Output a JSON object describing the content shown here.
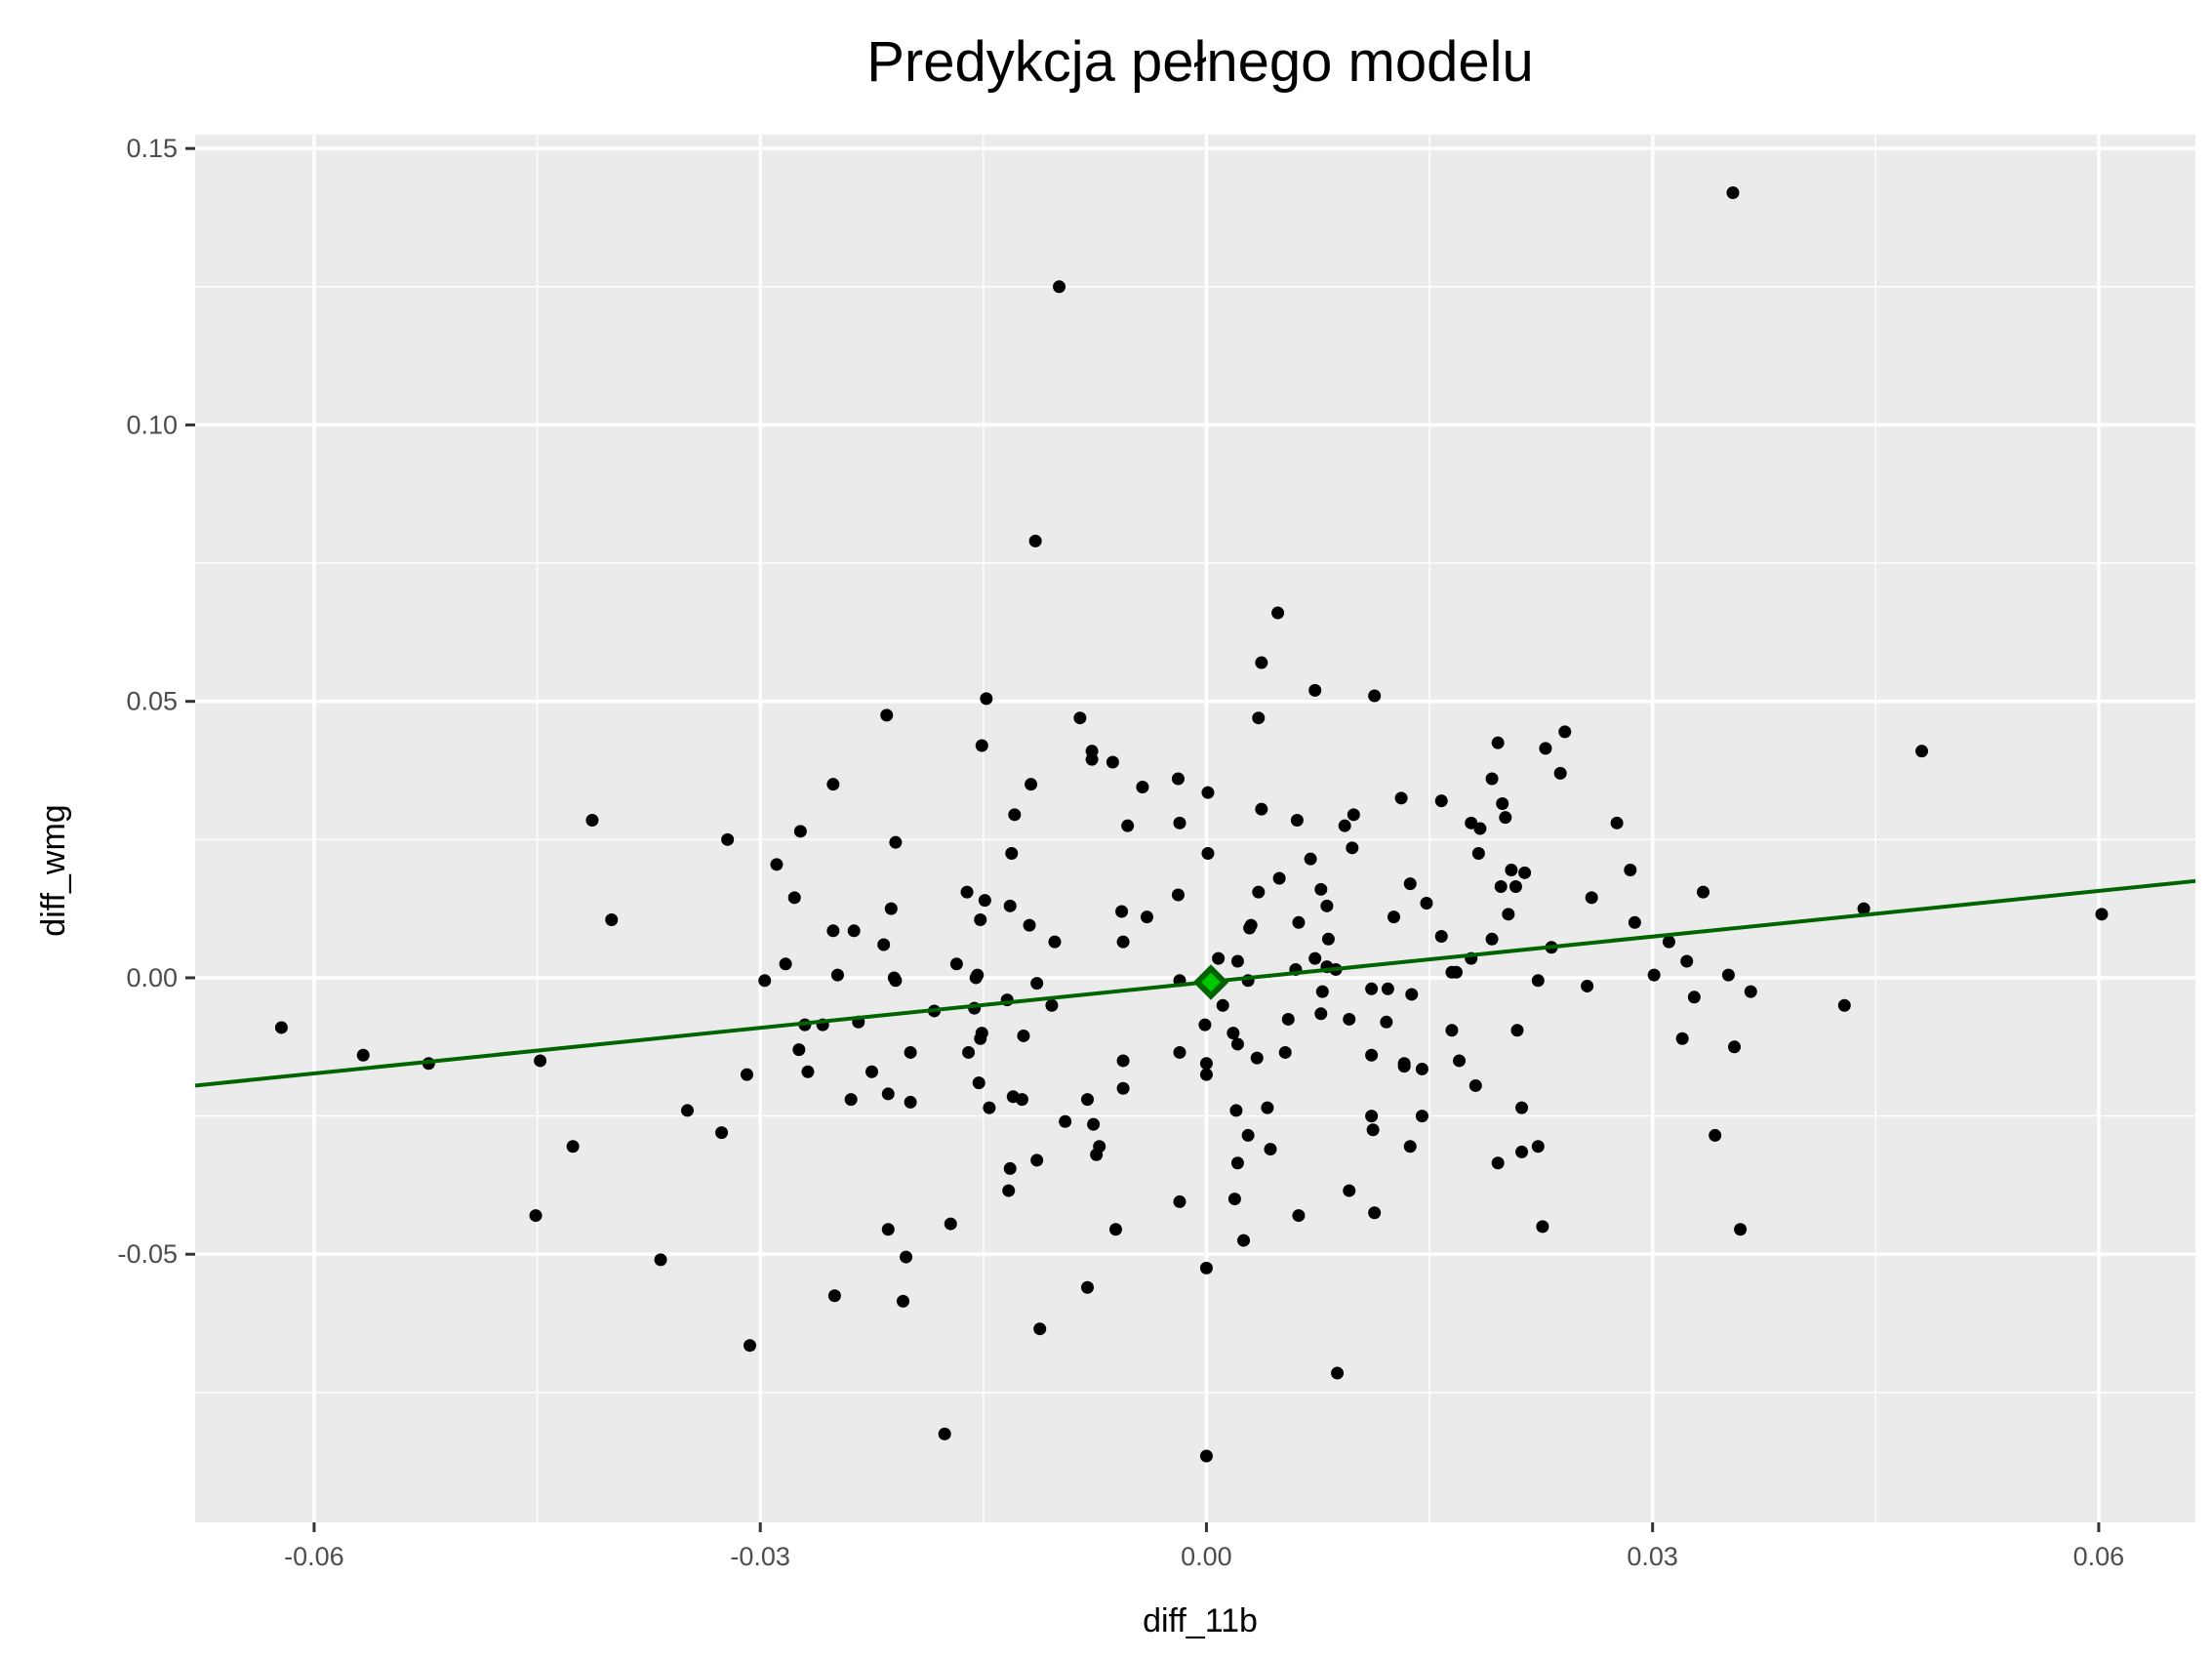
{
  "chart_data": {
    "type": "scatter",
    "title": "Predykcja pełnego modelu",
    "xlabel": "diff_11b",
    "ylabel": "diff_wmg",
    "xlim": [
      -0.068,
      0.0665
    ],
    "ylim": [
      -0.0985,
      0.1525
    ],
    "x_ticks": [
      -0.06,
      -0.03,
      0.0,
      0.03,
      0.06
    ],
    "x_tick_labels": [
      "-0.06",
      "-0.03",
      "0.00",
      "0.03",
      "0.06"
    ],
    "y_ticks": [
      -0.05,
      0.0,
      0.05,
      0.1,
      0.15
    ],
    "y_tick_labels": [
      "-0.05",
      "0.00",
      "0.05",
      "0.10",
      "0.15"
    ],
    "grid": true,
    "colors": {
      "panel": "#ebebeb",
      "grid": "#ffffff",
      "points": "#000000",
      "fit_line": "#006400",
      "marker_fill": "#00c800",
      "marker_stroke": "#006400"
    },
    "fit_line": {
      "x": [
        -0.068,
        0.0665
      ],
      "y": [
        -0.0195,
        0.0175
      ]
    },
    "highlight_point": {
      "x": 0.0003,
      "y": -0.0008,
      "shape": "diamond"
    },
    "points": [
      [
        0.0354,
        0.142
      ],
      [
        -0.0099,
        0.125
      ],
      [
        -0.0115,
        0.079
      ],
      [
        0.0048,
        0.066
      ],
      [
        0.0037,
        0.057
      ],
      [
        0.0073,
        0.052
      ],
      [
        0.0113,
        0.051
      ],
      [
        -0.0148,
        0.0505
      ],
      [
        -0.0215,
        0.0475
      ],
      [
        -0.0085,
        0.047
      ],
      [
        0.0035,
        0.047
      ],
      [
        0.0481,
        0.041
      ],
      [
        0.0241,
        0.0445
      ],
      [
        0.0196,
        0.0425
      ],
      [
        -0.0151,
        0.042
      ],
      [
        0.0228,
        0.0415
      ],
      [
        -0.0077,
        0.041
      ],
      [
        -0.0077,
        0.0395
      ],
      [
        -0.0063,
        0.039
      ],
      [
        0.0238,
        0.037
      ],
      [
        0.0192,
        0.036
      ],
      [
        -0.0019,
        0.036
      ],
      [
        -0.0043,
        0.0345
      ],
      [
        -0.0118,
        0.035
      ],
      [
        -0.0251,
        0.035
      ],
      [
        0.0001,
        0.0335
      ],
      [
        0.0131,
        0.0325
      ],
      [
        0.0158,
        0.032
      ],
      [
        0.0199,
        0.0315
      ],
      [
        0.0037,
        0.0305
      ],
      [
        0.0099,
        0.0295
      ],
      [
        0.0201,
        0.029
      ],
      [
        -0.0129,
        0.0295
      ],
      [
        -0.0413,
        0.0285
      ],
      [
        0.0061,
        0.0285
      ],
      [
        0.0093,
        0.0275
      ],
      [
        0.0276,
        0.028
      ],
      [
        -0.0018,
        0.028
      ],
      [
        -0.0053,
        0.0275
      ],
      [
        0.0178,
        0.028
      ],
      [
        0.0184,
        0.027
      ],
      [
        -0.0273,
        0.0265
      ],
      [
        -0.0322,
        0.025
      ],
      [
        -0.0209,
        0.0245
      ],
      [
        0.0098,
        0.0235
      ],
      [
        -0.0131,
        0.0225
      ],
      [
        0.0001,
        0.0225
      ],
      [
        0.0183,
        0.0225
      ],
      [
        -0.0289,
        0.0205
      ],
      [
        0.007,
        0.0215
      ],
      [
        0.0285,
        0.0195
      ],
      [
        0.0205,
        0.0195
      ],
      [
        0.0214,
        0.019
      ],
      [
        0.0049,
        0.018
      ],
      [
        -0.04,
        0.0105
      ],
      [
        0.0137,
        0.017
      ],
      [
        0.0198,
        0.0165
      ],
      [
        0.0208,
        0.0165
      ],
      [
        0.0334,
        0.0155
      ],
      [
        0.0077,
        0.016
      ],
      [
        0.0035,
        0.0155
      ],
      [
        -0.0161,
        0.0155
      ],
      [
        -0.0019,
        0.015
      ],
      [
        0.0259,
        0.0145
      ],
      [
        -0.0277,
        0.0145
      ],
      [
        -0.0149,
        0.014
      ],
      [
        0.0148,
        0.0135
      ],
      [
        -0.0132,
        0.013
      ],
      [
        0.0081,
        0.013
      ],
      [
        -0.0212,
        0.0125
      ],
      [
        0.0442,
        0.0125
      ],
      [
        0.0602,
        0.0115
      ],
      [
        0.0203,
        0.0115
      ],
      [
        -0.0057,
        0.012
      ],
      [
        0.0126,
        0.011
      ],
      [
        -0.004,
        0.011
      ],
      [
        0.0288,
        0.01
      ],
      [
        -0.0152,
        0.0105
      ],
      [
        0.0062,
        0.01
      ],
      [
        -0.0119,
        0.0095
      ],
      [
        0.0029,
        0.009
      ],
      [
        -0.0251,
        0.0085
      ],
      [
        -0.0237,
        0.0085
      ],
      [
        0.003,
        0.0095
      ],
      [
        0.0158,
        0.0075
      ],
      [
        0.0192,
        0.007
      ],
      [
        0.0082,
        0.007
      ],
      [
        -0.0102,
        0.0065
      ],
      [
        -0.0056,
        0.0065
      ],
      [
        0.0311,
        0.0065
      ],
      [
        -0.0217,
        0.006
      ],
      [
        0.0232,
        0.0055
      ],
      [
        -0.0168,
        0.0025
      ],
      [
        0.0008,
        0.0035
      ],
      [
        0.0021,
        0.003
      ],
      [
        0.0073,
        0.0035
      ],
      [
        -0.0283,
        0.0025
      ],
      [
        0.0178,
        0.0035
      ],
      [
        0.0323,
        0.003
      ],
      [
        0.0081,
        0.002
      ],
      [
        0.0165,
        0.001
      ],
      [
        0.006,
        0.0015
      ],
      [
        0.0301,
        0.0005
      ],
      [
        0.0351,
        0.0005
      ],
      [
        -0.0154,
        0.0005
      ],
      [
        0.0168,
        0.001
      ],
      [
        0.0087,
        0.0015
      ],
      [
        -0.0248,
        0.0005
      ],
      [
        -0.021,
        0.0
      ],
      [
        -0.0297,
        -0.0005
      ],
      [
        -0.0209,
        -0.0005
      ],
      [
        -0.0155,
        0.0
      ],
      [
        -0.0114,
        -0.001
      ],
      [
        -0.0018,
        -0.0005
      ],
      [
        0.0223,
        -0.0005
      ],
      [
        0.0028,
        -0.0005
      ],
      [
        0.0256,
        -0.0015
      ],
      [
        0.0111,
        -0.002
      ],
      [
        0.0122,
        -0.002
      ],
      [
        0.0078,
        -0.0025
      ],
      [
        0.0366,
        -0.0025
      ],
      [
        0.0138,
        -0.003
      ],
      [
        0.0328,
        -0.0035
      ],
      [
        -0.0134,
        -0.004
      ],
      [
        0.0011,
        -0.005
      ],
      [
        0.0429,
        -0.005
      ],
      [
        -0.0104,
        -0.005
      ],
      [
        -0.0156,
        -0.0055
      ],
      [
        -0.0183,
        -0.006
      ],
      [
        0.0077,
        -0.0065
      ],
      [
        0.0055,
        -0.0075
      ],
      [
        0.0096,
        -0.0075
      ],
      [
        0.0121,
        -0.008
      ],
      [
        -0.0234,
        -0.008
      ],
      [
        -0.027,
        -0.0085
      ],
      [
        -0.0258,
        -0.0085
      ],
      [
        -0.0622,
        -0.009
      ],
      [
        0.0165,
        -0.0095
      ],
      [
        0.0209,
        -0.0095
      ],
      [
        -0.0001,
        -0.0085
      ],
      [
        -0.0151,
        -0.01
      ],
      [
        -0.0123,
        -0.0105
      ],
      [
        0.0018,
        -0.01
      ],
      [
        -0.0152,
        -0.011
      ],
      [
        0.032,
        -0.011
      ],
      [
        0.0021,
        -0.012
      ],
      [
        0.0355,
        -0.0125
      ],
      [
        -0.0199,
        -0.0135
      ],
      [
        -0.016,
        -0.0135
      ],
      [
        0.0053,
        -0.0135
      ],
      [
        -0.0274,
        -0.013
      ],
      [
        -0.0018,
        -0.0135
      ],
      [
        0.0111,
        -0.014
      ],
      [
        0.0034,
        -0.0145
      ],
      [
        -0.0567,
        -0.014
      ],
      [
        -0.0448,
        -0.015
      ],
      [
        0.017,
        -0.015
      ],
      [
        -0.0056,
        -0.015
      ],
      [
        0.0133,
        -0.0155
      ],
      [
        -0.0523,
        -0.0155
      ],
      [
        0.0,
        -0.0155
      ],
      [
        0.0133,
        -0.016
      ],
      [
        -0.0268,
        -0.017
      ],
      [
        -0.0225,
        -0.017
      ],
      [
        0.0145,
        -0.0165
      ],
      [
        -0.0309,
        -0.0175
      ],
      [
        0.0,
        -0.0175
      ],
      [
        -0.0153,
        -0.019
      ],
      [
        0.0181,
        -0.0195
      ],
      [
        -0.0056,
        -0.02
      ],
      [
        -0.0214,
        -0.021
      ],
      [
        -0.013,
        -0.0215
      ],
      [
        -0.0124,
        -0.022
      ],
      [
        -0.0199,
        -0.0225
      ],
      [
        -0.0239,
        -0.022
      ],
      [
        -0.008,
        -0.022
      ],
      [
        0.0212,
        -0.0235
      ],
      [
        0.0041,
        -0.0235
      ],
      [
        0.002,
        -0.024
      ],
      [
        -0.0146,
        -0.0235
      ],
      [
        -0.0349,
        -0.024
      ],
      [
        0.0111,
        -0.025
      ],
      [
        0.0145,
        -0.025
      ],
      [
        -0.0095,
        -0.026
      ],
      [
        -0.0076,
        -0.0265
      ],
      [
        0.0112,
        -0.0275
      ],
      [
        0.0028,
        -0.0285
      ],
      [
        -0.0326,
        -0.028
      ],
      [
        0.0342,
        -0.0285
      ],
      [
        -0.0072,
        -0.0305
      ],
      [
        0.0223,
        -0.0305
      ],
      [
        -0.0426,
        -0.0305
      ],
      [
        0.0137,
        -0.0305
      ],
      [
        0.0043,
        -0.031
      ],
      [
        0.0212,
        -0.0315
      ],
      [
        -0.0074,
        -0.032
      ],
      [
        -0.0114,
        -0.033
      ],
      [
        0.0021,
        -0.0335
      ],
      [
        0.0196,
        -0.0335
      ],
      [
        -0.0132,
        -0.0345
      ],
      [
        -0.0133,
        -0.0385
      ],
      [
        0.0096,
        -0.0385
      ],
      [
        -0.0018,
        -0.0405
      ],
      [
        0.0019,
        -0.04
      ],
      [
        0.0113,
        -0.0425
      ],
      [
        0.0062,
        -0.043
      ],
      [
        -0.0451,
        -0.043
      ],
      [
        -0.0172,
        -0.0445
      ],
      [
        0.0226,
        -0.045
      ],
      [
        0.0359,
        -0.0455
      ],
      [
        -0.0061,
        -0.0455
      ],
      [
        -0.0214,
        -0.0455
      ],
      [
        0.0025,
        -0.0475
      ],
      [
        -0.0202,
        -0.0505
      ],
      [
        -0.0367,
        -0.051
      ],
      [
        0.0,
        -0.0525
      ],
      [
        -0.008,
        -0.056
      ],
      [
        -0.025,
        -0.0575
      ],
      [
        -0.0204,
        -0.0585
      ],
      [
        -0.0112,
        -0.0635
      ],
      [
        -0.0307,
        -0.0665
      ],
      [
        0.0088,
        -0.0715
      ],
      [
        -0.0176,
        -0.0825
      ],
      [
        0.0,
        -0.0865
      ]
    ]
  }
}
